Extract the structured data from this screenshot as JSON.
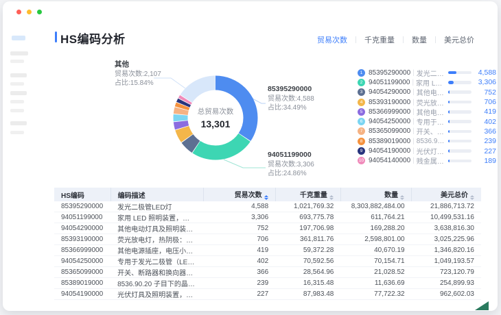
{
  "header": {
    "title": "HS编码分析",
    "accent_color": "#3d7efb"
  },
  "tabs": [
    {
      "label": "贸易次数",
      "active": true
    },
    {
      "label": "千克重量",
      "active": false
    },
    {
      "label": "数量",
      "active": false
    },
    {
      "label": "美元总价",
      "active": false
    }
  ],
  "chart_data": {
    "type": "donut",
    "title": "总贸易次数",
    "center_label": "总贸易次数",
    "center_value": "13,301",
    "total": 13301,
    "legend_position": "right",
    "slices": [
      {
        "code": "85395290000",
        "value": 4588,
        "pct": "34.49%",
        "color": "#4e8cf0"
      },
      {
        "code": "94051199000",
        "value": 3306,
        "pct": "24.86%",
        "color": "#3dd6b3"
      },
      {
        "code": "94054290000",
        "value": 752,
        "pct": "5.65%",
        "color": "#5d7092"
      },
      {
        "code": "85393190000",
        "value": 706,
        "pct": "5.31%",
        "color": "#f3b64a"
      },
      {
        "code": "85366999000",
        "value": 419,
        "pct": "3.15%",
        "color": "#8b6ce0"
      },
      {
        "code": "94054250000",
        "value": 402,
        "pct": "3.02%",
        "color": "#7bd5f2"
      },
      {
        "code": "85365099000",
        "value": 366,
        "pct": "2.75%",
        "color": "#f5b283"
      },
      {
        "code": "85389019000",
        "value": 239,
        "pct": "1.80%",
        "color": "#f5923e"
      },
      {
        "code": "94054190000",
        "value": 227,
        "pct": "1.71%",
        "color": "#27347d"
      },
      {
        "code": "94054140000",
        "value": 189,
        "pct": "1.42%",
        "color": "#f08bbb"
      },
      {
        "code": "其他",
        "value": 2107,
        "pct": "15.84%",
        "color": "#d8e7fa"
      }
    ],
    "callouts": [
      {
        "title": "其他",
        "line1": "贸易次数:2,107",
        "line2": "占比:15.84%"
      },
      {
        "title": "85395290000",
        "line1": "贸易次数:4,588",
        "line2": "占比:34.49%"
      },
      {
        "title": "94051199000",
        "line1": "贸易次数:3,306",
        "line2": "占比:24.86%"
      }
    ]
  },
  "legend": {
    "items": [
      {
        "num": "1",
        "code": "85395290000",
        "desc": "发光二极管...",
        "value": 4588,
        "value_display": "4,588"
      },
      {
        "num": "2",
        "code": "94051199000",
        "desc": "家用 LED 照...",
        "value": 3306,
        "value_display": "3,306"
      },
      {
        "num": "3",
        "code": "94054290000",
        "desc": "其他电动灯...",
        "value": 752,
        "value_display": "752"
      },
      {
        "num": "4",
        "code": "85393190000",
        "desc": "荧光放电灯...",
        "value": 706,
        "value_display": "706"
      },
      {
        "num": "5",
        "code": "85366999000",
        "desc": "其他电源插...",
        "value": 419,
        "value_display": "419"
      },
      {
        "num": "6",
        "code": "94054250000",
        "desc": "专用于发光...",
        "value": 402,
        "value_display": "402"
      },
      {
        "num": "7",
        "code": "85365099000",
        "desc": "开关、断路...",
        "value": 366,
        "value_display": "366"
      },
      {
        "num": "8",
        "code": "85389019000",
        "desc": "8536.90.20 ...",
        "value": 239,
        "value_display": "239"
      },
      {
        "num": "9",
        "code": "94054190000",
        "desc": "光伏灯具及...",
        "value": 227,
        "value_display": "227"
      },
      {
        "num": "10",
        "code": "94054140000",
        "desc": "贱金属（不...",
        "value": 189,
        "value_display": "189"
      }
    ]
  },
  "table": {
    "headers": [
      {
        "label": "HS编码",
        "sortable": false,
        "active": false,
        "align": "left"
      },
      {
        "label": "编码描述",
        "sortable": false,
        "active": false,
        "align": "left"
      },
      {
        "label": "贸易次数",
        "sortable": true,
        "active": true,
        "align": "right"
      },
      {
        "label": "千克重量",
        "sortable": true,
        "active": false,
        "align": "right"
      },
      {
        "label": "数量",
        "sortable": true,
        "active": false,
        "align": "right"
      },
      {
        "label": "美元总价",
        "sortable": true,
        "active": false,
        "align": "right"
      }
    ],
    "rows": [
      [
        "85395290000",
        "发光二极管LED灯",
        "4,588",
        "1,021,769.32",
        "8,303,882,484.00",
        "21,886,713.72"
      ],
      [
        "94051199000",
        "家用 LED 照明装置，其他（代码：9405.1...",
        "3,306",
        "693,775.78",
        "611,764.21",
        "10,499,531.16"
      ],
      [
        "94054290000",
        "其他电动灯具及照明装置，未列明，设计...",
        "752",
        "197,706.98",
        "169,288.20",
        "3,638,816.30"
      ],
      [
        "85393190000",
        "荧光放电灯，热阴极：其他荧光，热阴极",
        "706",
        "361,811.76",
        "2,598,801.00",
        "3,025,225.96"
      ],
      [
        "85366999000",
        "其他电源插座，电压小于或等于 1000 伏；...",
        "419",
        "59,372.28",
        "40,670.19",
        "1,346,820.16"
      ],
      [
        "94054250000",
        "专用于发光二极管（LED）光源的灯具及...",
        "402",
        "70,592.56",
        "70,154.71",
        "1,049,193.57"
      ],
      [
        "85365099000",
        "开关、断路器和换向器；其余。",
        "366",
        "28,564.96",
        "21,028.52",
        "723,120.79"
      ],
      [
        "85389019000",
        "8536.90.20 子目下的晶圆探测器零件，其...",
        "239",
        "16,315.48",
        "11,636.69",
        "254,899.93"
      ],
      [
        "94054190000",
        "光伏灯具及照明装置，仅用于发光二极管...",
        "227",
        "87,983.48",
        "77,722.32",
        "962,602.03"
      ]
    ]
  },
  "colors": {
    "accent": "#3d7efb",
    "traffic": [
      "#ff5f57",
      "#febc2e",
      "#28c840"
    ],
    "header_bg": "#edf1f8"
  }
}
